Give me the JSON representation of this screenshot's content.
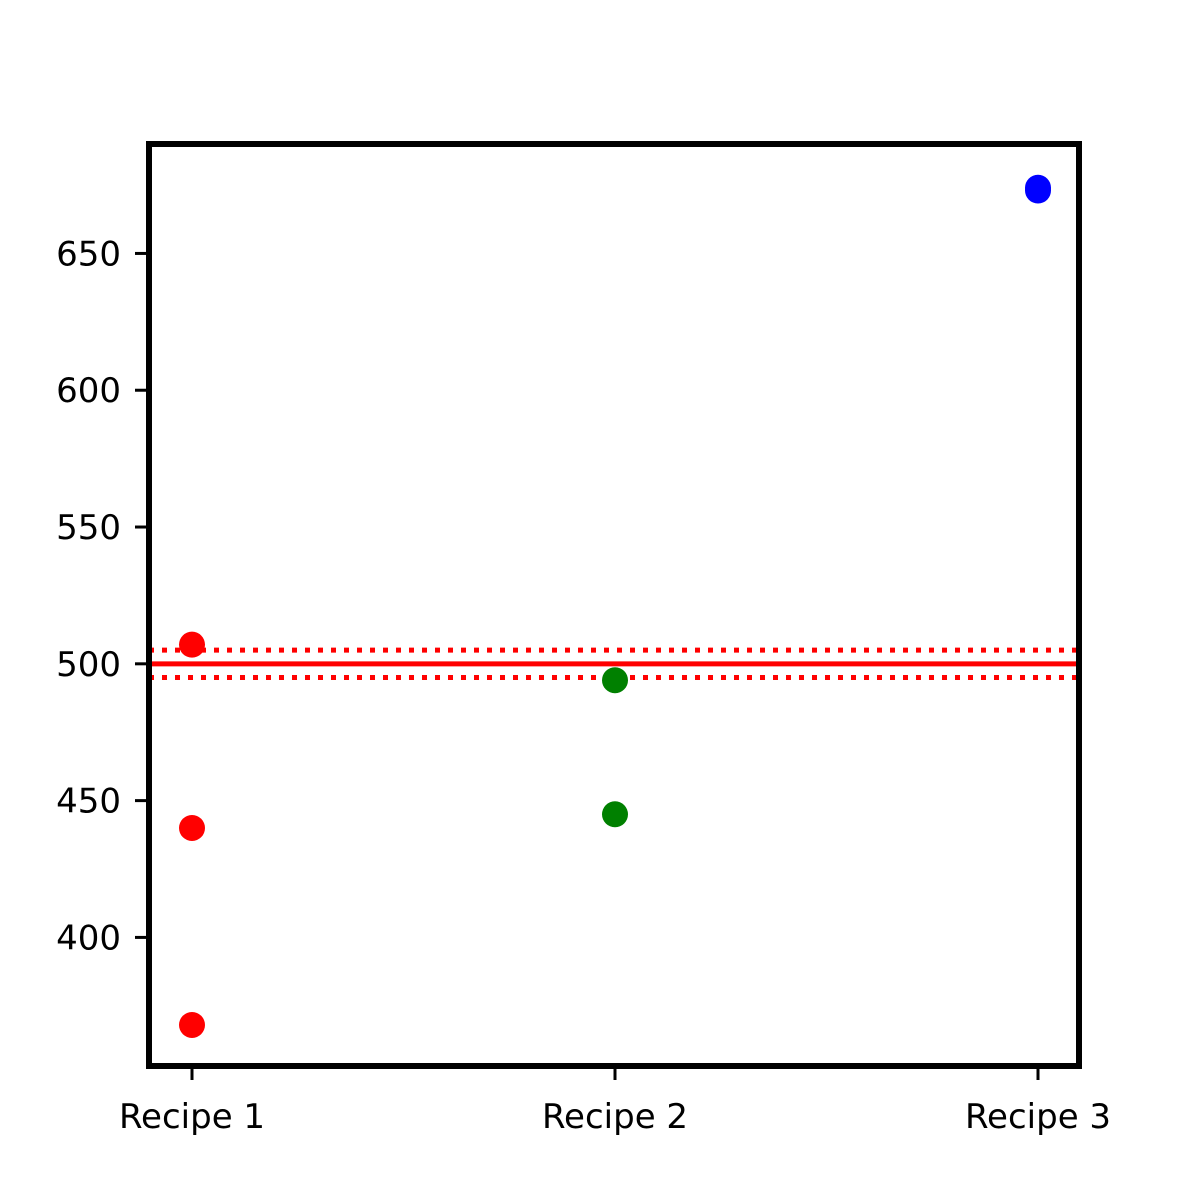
{
  "chart_data": {
    "type": "scatter",
    "title": "",
    "xlabel": "",
    "ylabel": "",
    "categories": [
      "Recipe 1",
      "Recipe 2",
      "Recipe 3"
    ],
    "ylim": [
      353,
      690
    ],
    "yticks": [
      400,
      450,
      500,
      550,
      600,
      650
    ],
    "grid": false,
    "series": [
      {
        "category": "Recipe 1",
        "color": "#ff0000",
        "values": [
          507,
          440,
          368
        ]
      },
      {
        "category": "Recipe 2",
        "color": "#008000",
        "values": [
          494,
          445
        ]
      },
      {
        "category": "Recipe 3",
        "color": "#0000ff",
        "values": [
          673,
          674
        ]
      }
    ],
    "reference_lines": [
      {
        "y": 500,
        "color": "#ff0000",
        "style": "solid"
      },
      {
        "y": 505,
        "color": "#ff0000",
        "style": "dotted"
      },
      {
        "y": 495,
        "color": "#ff0000",
        "style": "dotted"
      }
    ]
  }
}
